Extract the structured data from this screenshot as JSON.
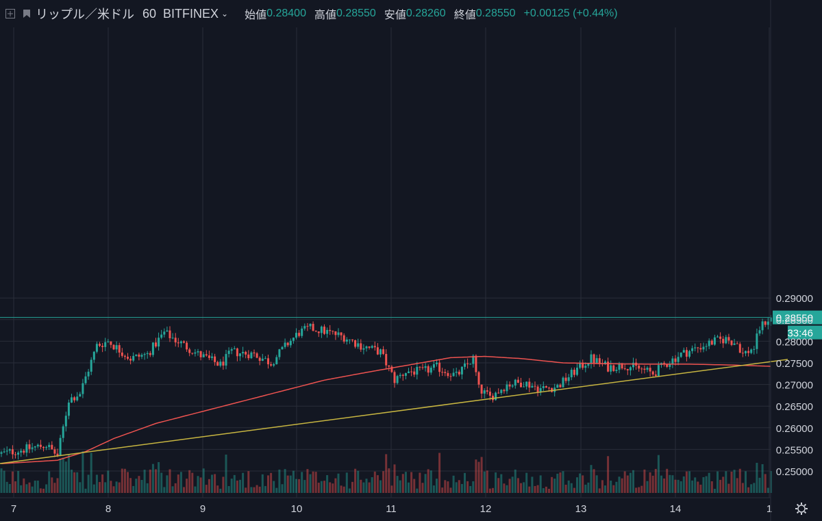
{
  "header": {
    "symbol": "リップル／米ドル",
    "interval": "60",
    "exchange": "BITFINEX",
    "open_label": "始値",
    "open_value": "0.28400",
    "high_label": "高値",
    "high_value": "0.28550",
    "low_label": "安値",
    "low_value": "0.28260",
    "close_label": "終値",
    "close_value": "0.28550",
    "change": "+0.00125 (+0.44%)"
  },
  "price_axis": {
    "ticks": [
      "0.29000",
      "0.28500",
      "0.28000",
      "0.27500",
      "0.27000",
      "0.26500",
      "0.26000",
      "0.25500",
      "0.25000"
    ],
    "last_price_label": "0.28550",
    "countdown_label": "33:46"
  },
  "time_axis": {
    "ticks": [
      "7",
      "8",
      "9",
      "10",
      "11",
      "12",
      "13",
      "14",
      "1"
    ]
  },
  "colors": {
    "background": "#131722",
    "grid": "#2a2e39",
    "up": "#26a69a",
    "down": "#ef5350",
    "ma": "#ef5350",
    "trendline": "#c8b641",
    "last_price": "#26a69a"
  },
  "icons": {
    "menu": "plus-square-icon",
    "flag": "flag-icon",
    "settings": "gear-icon"
  },
  "chart_data": {
    "type": "candlestick",
    "title": "リップル／米ドル 60 BITFINEX",
    "interval_minutes": 60,
    "x_axis": {
      "type": "date",
      "ticks": [
        "7",
        "8",
        "9",
        "10",
        "11",
        "12",
        "13",
        "14",
        "1"
      ]
    },
    "y_axis": {
      "range": [
        0.248,
        0.2915
      ],
      "ticks": [
        0.29,
        0.285,
        0.28,
        0.275,
        0.27,
        0.265,
        0.26,
        0.255,
        0.25
      ],
      "side": "right"
    },
    "grid": true,
    "last_price": 0.2855,
    "anchors": [
      {
        "x": 0,
        "p": 0.254
      },
      {
        "x": 8,
        "p": 0.255
      },
      {
        "x": 16,
        "p": 0.256
      },
      {
        "x": 20,
        "p": 0.2535
      },
      {
        "x": 24,
        "p": 0.2665
      },
      {
        "x": 28,
        "p": 0.268
      },
      {
        "x": 34,
        "p": 0.279
      },
      {
        "x": 38,
        "p": 0.28
      },
      {
        "x": 46,
        "p": 0.276
      },
      {
        "x": 52,
        "p": 0.277
      },
      {
        "x": 58,
        "p": 0.282
      },
      {
        "x": 64,
        "p": 0.2795
      },
      {
        "x": 70,
        "p": 0.277
      },
      {
        "x": 78,
        "p": 0.2745
      },
      {
        "x": 82,
        "p": 0.2775
      },
      {
        "x": 90,
        "p": 0.277
      },
      {
        "x": 96,
        "p": 0.275
      },
      {
        "x": 102,
        "p": 0.2795
      },
      {
        "x": 106,
        "p": 0.282
      },
      {
        "x": 110,
        "p": 0.283
      },
      {
        "x": 114,
        "p": 0.2825
      },
      {
        "x": 122,
        "p": 0.281
      },
      {
        "x": 128,
        "p": 0.279
      },
      {
        "x": 135,
        "p": 0.2775
      },
      {
        "x": 140,
        "p": 0.271
      },
      {
        "x": 144,
        "p": 0.273
      },
      {
        "x": 150,
        "p": 0.273
      },
      {
        "x": 155,
        "p": 0.274
      },
      {
        "x": 162,
        "p": 0.272
      },
      {
        "x": 168,
        "p": 0.276
      },
      {
        "x": 170,
        "p": 0.269
      },
      {
        "x": 174,
        "p": 0.267
      },
      {
        "x": 180,
        "p": 0.27
      },
      {
        "x": 186,
        "p": 0.2705
      },
      {
        "x": 192,
        "p": 0.269
      },
      {
        "x": 198,
        "p": 0.2695
      },
      {
        "x": 204,
        "p": 0.273
      },
      {
        "x": 210,
        "p": 0.276
      },
      {
        "x": 216,
        "p": 0.274
      },
      {
        "x": 222,
        "p": 0.2745
      },
      {
        "x": 228,
        "p": 0.2735
      },
      {
        "x": 232,
        "p": 0.2725
      },
      {
        "x": 236,
        "p": 0.2745
      },
      {
        "x": 242,
        "p": 0.277
      },
      {
        "x": 248,
        "p": 0.2785
      },
      {
        "x": 254,
        "p": 0.28
      },
      {
        "x": 258,
        "p": 0.2805
      },
      {
        "x": 262,
        "p": 0.2795
      },
      {
        "x": 264,
        "p": 0.277
      },
      {
        "x": 268,
        "p": 0.2785
      },
      {
        "x": 270,
        "p": 0.283
      },
      {
        "x": 272,
        "p": 0.2845
      },
      {
        "x": 274,
        "p": 0.2855
      }
    ],
    "moving_average": [
      {
        "x": 0,
        "p": 0.2517
      },
      {
        "x": 20,
        "p": 0.2525
      },
      {
        "x": 30,
        "p": 0.2545
      },
      {
        "x": 40,
        "p": 0.2575
      },
      {
        "x": 55,
        "p": 0.261
      },
      {
        "x": 70,
        "p": 0.2635
      },
      {
        "x": 85,
        "p": 0.266
      },
      {
        "x": 100,
        "p": 0.2685
      },
      {
        "x": 115,
        "p": 0.271
      },
      {
        "x": 130,
        "p": 0.2728
      },
      {
        "x": 145,
        "p": 0.2745
      },
      {
        "x": 160,
        "p": 0.2762
      },
      {
        "x": 172,
        "p": 0.2765
      },
      {
        "x": 185,
        "p": 0.276
      },
      {
        "x": 200,
        "p": 0.275
      },
      {
        "x": 215,
        "p": 0.2748
      },
      {
        "x": 230,
        "p": 0.2747
      },
      {
        "x": 245,
        "p": 0.2747
      },
      {
        "x": 260,
        "p": 0.2745
      },
      {
        "x": 274,
        "p": 0.2742
      }
    ],
    "trendline": [
      {
        "x": -2,
        "p": 0.2516
      },
      {
        "x": 280,
        "p": 0.2758
      }
    ]
  }
}
